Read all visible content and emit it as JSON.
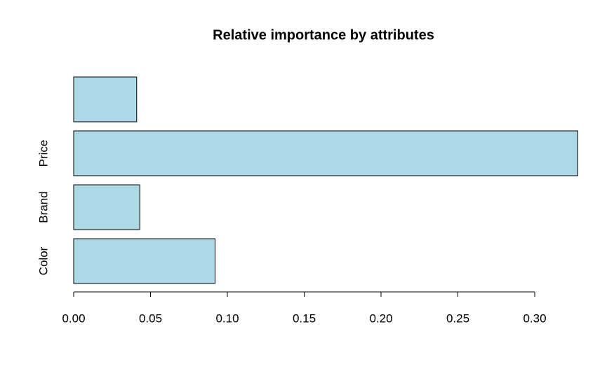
{
  "chart_data": {
    "type": "bar",
    "orientation": "horizontal",
    "title": "Relative importance by attributes",
    "categories": [
      "Color",
      "Brand",
      "Price",
      null
    ],
    "values": [
      0.092,
      0.043,
      0.328,
      0.041
    ],
    "color": "#add8e6",
    "xlim": [
      0,
      0.33
    ],
    "xticks": [
      {
        "value": 0,
        "label": "0.00"
      },
      {
        "value": 0.05,
        "label": "0.05"
      },
      {
        "value": 0.1,
        "label": "0.10"
      },
      {
        "value": 0.15,
        "label": "0.15"
      },
      {
        "value": 0.2,
        "label": "0.20"
      },
      {
        "value": 0.25,
        "label": "0.25"
      },
      {
        "value": 0.3,
        "label": "0.30"
      }
    ],
    "grid": false
  }
}
